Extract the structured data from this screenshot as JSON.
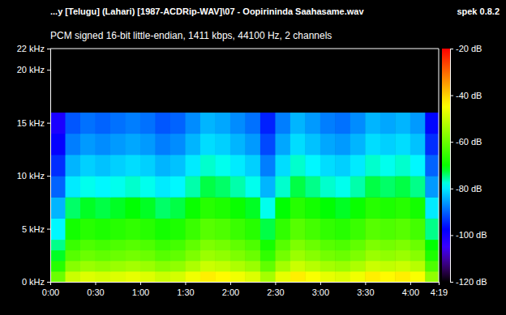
{
  "chart_data": {
    "type": "heatmap",
    "title": "...y [Telugu] (Lahari) [1987-ACDRip-WAV]\\07 - Oopirininda Saahasame.wav",
    "subtitle": "PCM signed 16-bit little-endian, 1411 kbps, 44100 Hz, 2 channels",
    "annotations": [
      "spek 0.8.2"
    ],
    "xlim": [
      0,
      259
    ],
    "ylim": [
      0,
      22
    ],
    "xticks": [
      {
        "value": 0,
        "label": "0:00"
      },
      {
        "value": 30,
        "label": "0:30"
      },
      {
        "value": 60,
        "label": "1:00"
      },
      {
        "value": 90,
        "label": "1:30"
      },
      {
        "value": 120,
        "label": "2:00"
      },
      {
        "value": 150,
        "label": "2:30"
      },
      {
        "value": 180,
        "label": "3:00"
      },
      {
        "value": 210,
        "label": "3:30"
      },
      {
        "value": 240,
        "label": "4:00"
      },
      {
        "value": 259,
        "label": "4:19"
      }
    ],
    "yticks": [
      {
        "value": 0,
        "label": "0 kHz"
      },
      {
        "value": 5,
        "label": "5 kHz"
      },
      {
        "value": 10,
        "label": "10 kHz"
      },
      {
        "value": 15,
        "label": "15 kHz"
      },
      {
        "value": 20,
        "label": "20 kHz"
      },
      {
        "value": 22,
        "label": "22 kHz"
      }
    ],
    "x_bins": [
      0,
      10,
      20,
      30,
      40,
      50,
      60,
      70,
      80,
      90,
      100,
      110,
      120,
      130,
      140,
      150,
      160,
      170,
      180,
      190,
      200,
      210,
      220,
      230,
      240,
      250,
      259
    ],
    "y_bins": [
      0,
      1,
      2,
      3,
      4,
      6,
      8,
      10,
      12,
      14,
      16,
      22
    ],
    "cells": [
      [
        -60,
        -50,
        -48,
        -49,
        -48,
        -47,
        -48,
        -50,
        -49,
        -46,
        -43,
        -44,
        -46,
        -48,
        -54,
        -47,
        -43,
        -45,
        -47,
        -48,
        -46,
        -43,
        -44,
        -43,
        -45,
        -56
      ],
      [
        -67,
        -57,
        -55,
        -56,
        -55,
        -54,
        -55,
        -57,
        -56,
        -53,
        -50,
        -51,
        -53,
        -55,
        -61,
        -54,
        -50,
        -52,
        -54,
        -55,
        -53,
        -50,
        -51,
        -50,
        -52,
        -63
      ],
      [
        -72,
        -62,
        -60,
        -61,
        -60,
        -59,
        -60,
        -62,
        -61,
        -58,
        -55,
        -56,
        -58,
        -60,
        -66,
        -59,
        -55,
        -57,
        -59,
        -60,
        -58,
        -55,
        -56,
        -55,
        -57,
        -68
      ],
      [
        -75,
        -65,
        -63,
        -64,
        -63,
        -62,
        -63,
        -65,
        -64,
        -61,
        -58,
        -59,
        -61,
        -63,
        -69,
        -62,
        -58,
        -60,
        -62,
        -63,
        -61,
        -58,
        -59,
        -58,
        -60,
        -71
      ],
      [
        -79,
        -69,
        -67,
        -68,
        -67,
        -66,
        -67,
        -69,
        -68,
        -65,
        -62,
        -63,
        -65,
        -67,
        -73,
        -66,
        -62,
        -64,
        -66,
        -67,
        -65,
        -62,
        -63,
        -62,
        -64,
        -75
      ],
      [
        -84,
        -74,
        -72,
        -73,
        -72,
        -71,
        -72,
        -74,
        -73,
        -70,
        -67,
        -68,
        -70,
        -72,
        -78,
        -71,
        -67,
        -69,
        -71,
        -72,
        -70,
        -67,
        -68,
        -67,
        -69,
        -80
      ],
      [
        -90,
        -80,
        -78,
        -79,
        -78,
        -77,
        -78,
        -80,
        -79,
        -76,
        -73,
        -74,
        -76,
        -78,
        -84,
        -77,
        -73,
        -75,
        -77,
        -78,
        -76,
        -73,
        -74,
        -73,
        -75,
        -86
      ],
      [
        -94,
        -84,
        -82,
        -83,
        -82,
        -81,
        -82,
        -84,
        -83,
        -80,
        -77,
        -78,
        -80,
        -82,
        -88,
        -81,
        -77,
        -79,
        -81,
        -82,
        -80,
        -77,
        -78,
        -77,
        -79,
        -90
      ],
      [
        -98,
        -88,
        -86,
        -87,
        -86,
        -85,
        -86,
        -88,
        -87,
        -84,
        -81,
        -82,
        -84,
        -86,
        -92,
        -85,
        -81,
        -83,
        -85,
        -86,
        -84,
        -81,
        -82,
        -81,
        -83,
        -94
      ],
      [
        -101,
        -91,
        -89,
        -90,
        -89,
        -88,
        -89,
        -91,
        -90,
        -87,
        -84,
        -85,
        -87,
        -89,
        -95,
        -88,
        -84,
        -86,
        -88,
        -89,
        -87,
        -84,
        -85,
        -84,
        -86,
        -97
      ],
      [
        -120,
        -120,
        -120,
        -120,
        -120,
        -120,
        -120,
        -120,
        -120,
        -120,
        -120,
        -120,
        -120,
        -120,
        -120,
        -120,
        -120,
        -120,
        -120,
        -120,
        -120,
        -120,
        -120,
        -120,
        -120,
        -120
      ]
    ],
    "colorbar": {
      "lim": [
        -120,
        -20
      ],
      "ticks": [
        {
          "value": -20,
          "label": "-20 dB"
        },
        {
          "value": -40,
          "label": "-40 dB"
        },
        {
          "value": -60,
          "label": "-60 dB"
        },
        {
          "value": -80,
          "label": "-80 dB"
        },
        {
          "value": -100,
          "label": "-100 dB"
        },
        {
          "value": -120,
          "label": "-120 dB"
        }
      ]
    }
  }
}
